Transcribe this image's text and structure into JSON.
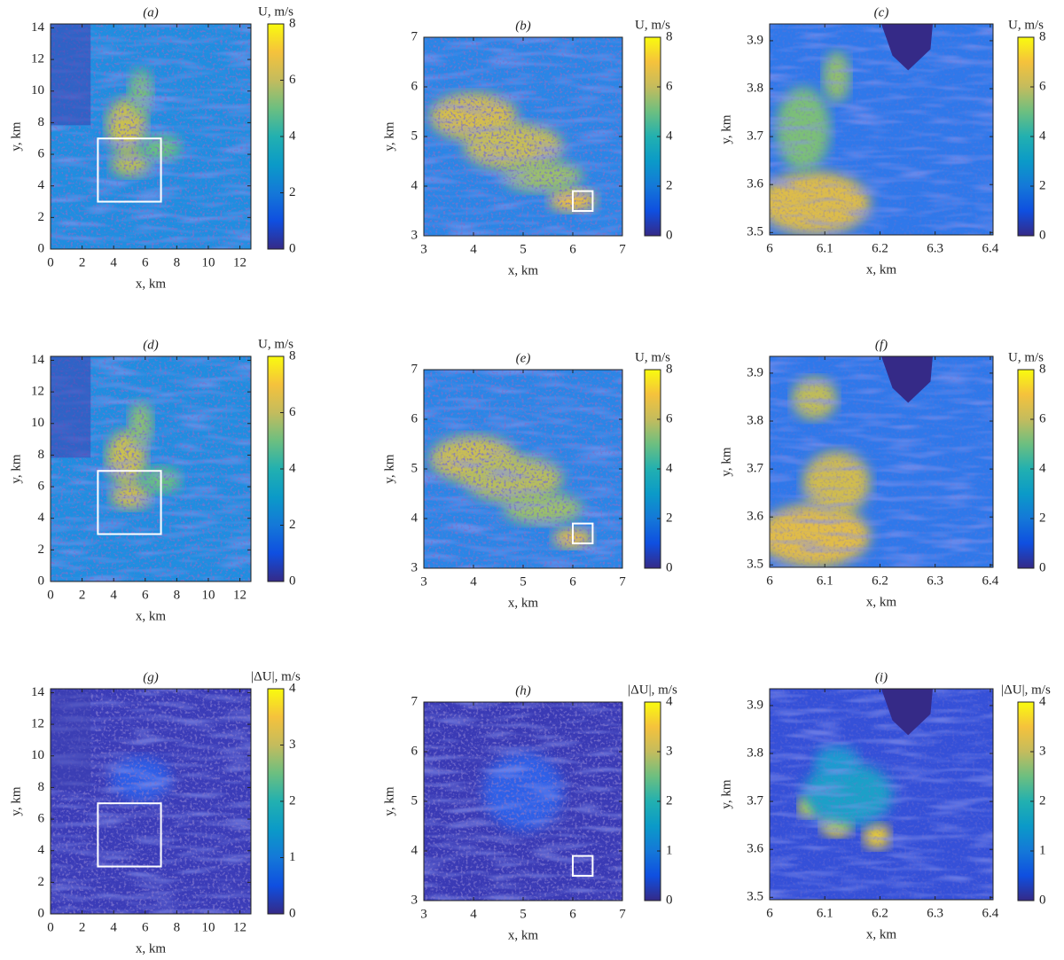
{
  "chart_data": [
    {
      "type": "heatmap",
      "title": "(a)",
      "xlabel": "x, km",
      "ylabel": "y, km",
      "xlim": [
        0,
        12.7
      ],
      "ylim": [
        0,
        14.25
      ],
      "xticks": [
        0,
        2,
        4,
        6,
        8,
        10,
        12
      ],
      "yticks": [
        0,
        2,
        4,
        6,
        8,
        10,
        12,
        14
      ],
      "colorbar_label": "U, m/s",
      "colormap": "parula",
      "clim": [
        0,
        8
      ],
      "cticks": [
        0,
        2,
        4,
        6,
        8
      ],
      "box": {
        "xlim": [
          3,
          7
        ],
        "ylim": [
          3,
          7
        ]
      }
    },
    {
      "type": "heatmap",
      "title": "(b)",
      "xlabel": "x, km",
      "ylabel": "y, km",
      "xlim": [
        3,
        7
      ],
      "ylim": [
        3,
        7
      ],
      "xticks": [
        3,
        4,
        5,
        6,
        7
      ],
      "yticks": [
        3,
        4,
        5,
        6,
        7
      ],
      "colorbar_label": "U, m/s",
      "colormap": "parula",
      "clim": [
        0,
        8
      ],
      "cticks": [
        0,
        2,
        4,
        6,
        8
      ],
      "box": {
        "xlim": [
          6,
          6.4
        ],
        "ylim": [
          3.5,
          3.9
        ]
      }
    },
    {
      "type": "heatmap",
      "title": "(c)",
      "xlabel": "x, km",
      "ylabel": "y, km",
      "xlim": [
        6,
        6.405
      ],
      "ylim": [
        3.495,
        3.935
      ],
      "xticks": [
        6,
        6.1,
        6.2,
        6.3,
        6.4
      ],
      "yticks": [
        3.5,
        3.6,
        3.7,
        3.8,
        3.9
      ],
      "colorbar_label": "U, m/s",
      "colormap": "parula",
      "clim": [
        0,
        8
      ],
      "cticks": [
        0,
        2,
        4,
        6,
        8
      ]
    },
    {
      "type": "heatmap",
      "title": "(d)",
      "xlabel": "x, km",
      "ylabel": "y, km",
      "xlim": [
        0,
        12.7
      ],
      "ylim": [
        0,
        14.25
      ],
      "xticks": [
        0,
        2,
        4,
        6,
        8,
        10,
        12
      ],
      "yticks": [
        0,
        2,
        4,
        6,
        8,
        10,
        12,
        14
      ],
      "colorbar_label": "U, m/s",
      "colormap": "parula",
      "clim": [
        0,
        8
      ],
      "cticks": [
        0,
        2,
        4,
        6,
        8
      ],
      "box": {
        "xlim": [
          3,
          7
        ],
        "ylim": [
          3,
          7
        ]
      }
    },
    {
      "type": "heatmap",
      "title": "(e)",
      "xlabel": "x, km",
      "ylabel": "y, km",
      "xlim": [
        3,
        7
      ],
      "ylim": [
        3,
        7
      ],
      "xticks": [
        3,
        4,
        5,
        6,
        7
      ],
      "yticks": [
        3,
        4,
        5,
        6,
        7
      ],
      "colorbar_label": "U, m/s",
      "colormap": "parula",
      "clim": [
        0,
        8
      ],
      "cticks": [
        0,
        2,
        4,
        6,
        8
      ],
      "box": {
        "xlim": [
          6,
          6.4
        ],
        "ylim": [
          3.5,
          3.9
        ]
      }
    },
    {
      "type": "heatmap",
      "title": "(f)",
      "xlabel": "x, km",
      "ylabel": "y, km",
      "xlim": [
        6,
        6.405
      ],
      "ylim": [
        3.495,
        3.935
      ],
      "xticks": [
        6,
        6.1,
        6.2,
        6.3,
        6.4
      ],
      "yticks": [
        3.5,
        3.6,
        3.7,
        3.8,
        3.9
      ],
      "colorbar_label": "U, m/s",
      "colormap": "parula",
      "clim": [
        0,
        8
      ],
      "cticks": [
        0,
        2,
        4,
        6,
        8
      ]
    },
    {
      "type": "heatmap",
      "title": "(g)",
      "xlabel": "x, km",
      "ylabel": "y, km",
      "xlim": [
        0,
        12.7
      ],
      "ylim": [
        0,
        14.25
      ],
      "xticks": [
        0,
        2,
        4,
        6,
        8,
        10,
        12
      ],
      "yticks": [
        0,
        2,
        4,
        6,
        8,
        10,
        12,
        14
      ],
      "colorbar_label": "|ΔU|, m/s",
      "colormap": "parula",
      "clim": [
        0,
        4
      ],
      "cticks": [
        0,
        1,
        2,
        3,
        4
      ],
      "box": {
        "xlim": [
          3,
          7
        ],
        "ylim": [
          3,
          7
        ]
      }
    },
    {
      "type": "heatmap",
      "title": "(h)",
      "xlabel": "x, km",
      "ylabel": "y, km",
      "xlim": [
        3,
        7
      ],
      "ylim": [
        3,
        7
      ],
      "xticks": [
        3,
        4,
        5,
        6,
        7
      ],
      "yticks": [
        3,
        4,
        5,
        6,
        7
      ],
      "colorbar_label": "|ΔU|, m/s",
      "colormap": "parula",
      "clim": [
        0,
        4
      ],
      "cticks": [
        0,
        1,
        2,
        3,
        4
      ],
      "box": {
        "xlim": [
          6,
          6.4
        ],
        "ylim": [
          3.5,
          3.9
        ]
      }
    },
    {
      "type": "heatmap",
      "title": "(i)",
      "xlabel": "x, km",
      "ylabel": "y, km",
      "xlim": [
        6,
        6.405
      ],
      "ylim": [
        3.495,
        3.935
      ],
      "xticks": [
        6,
        6.1,
        6.2,
        6.3,
        6.4
      ],
      "yticks": [
        3.5,
        3.6,
        3.7,
        3.8,
        3.9
      ],
      "colorbar_label": "|ΔU|, m/s",
      "colormap": "parula",
      "clim": [
        0,
        4
      ],
      "cticks": [
        0,
        1,
        2,
        3,
        4
      ]
    }
  ]
}
